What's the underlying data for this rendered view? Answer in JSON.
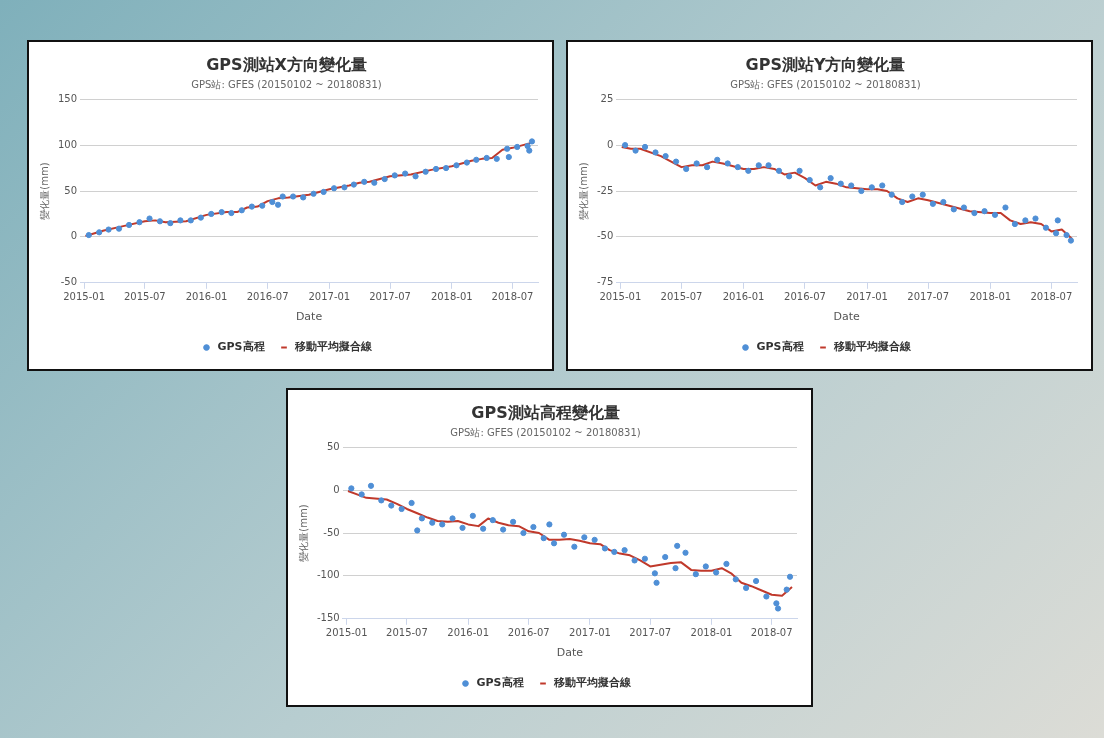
{
  "chart_data": [
    {
      "type": "scatter",
      "title": "GPS測站X方向變化量",
      "subtitle": "GPS站: GFES (20150102 ~ 20180831)",
      "xlabel": "Date",
      "ylabel": "變化量(mm)",
      "xlim": [
        "2014-12-20",
        "2018-09-15"
      ],
      "xticks": [
        "2015-01",
        "2015-07",
        "2016-01",
        "2016-07",
        "2017-01",
        "2017-07",
        "2018-01",
        "2018-07"
      ],
      "ylim": [
        -50,
        150
      ],
      "yticks": [
        -50,
        0,
        50,
        100,
        150
      ],
      "grid": "y",
      "legend": "bottom",
      "series": [
        {
          "name": "GPS高程",
          "type": "scatter",
          "marker": "circle",
          "color": "#4f8fd6",
          "x": [
            "2015-01-15",
            "2015-02-15",
            "2015-03-15",
            "2015-04-15",
            "2015-05-15",
            "2015-06-15",
            "2015-07-15",
            "2015-08-15",
            "2015-09-15",
            "2015-10-15",
            "2015-11-15",
            "2015-12-15",
            "2016-01-15",
            "2016-02-15",
            "2016-03-15",
            "2016-04-15",
            "2016-05-15",
            "2016-06-15",
            "2016-07-15",
            "2016-08-15",
            "2016-09-15",
            "2016-10-15",
            "2016-11-15",
            "2016-12-15",
            "2017-01-15",
            "2017-02-15",
            "2017-03-15",
            "2017-04-15",
            "2017-05-15",
            "2017-06-15",
            "2017-07-15",
            "2017-08-15",
            "2017-09-15",
            "2017-10-15",
            "2017-11-15",
            "2017-12-15",
            "2018-01-15",
            "2018-02-15",
            "2018-03-15",
            "2018-04-15",
            "2018-05-15",
            "2018-06-15",
            "2018-07-15",
            "2018-08-15",
            "2016-08-01",
            "2018-06-20",
            "2018-08-20",
            "2018-08-28"
          ],
          "values": [
            2,
            5,
            8,
            9,
            13,
            16,
            20,
            17,
            15,
            18,
            18,
            21,
            25,
            27,
            26,
            29,
            33,
            34,
            38,
            44,
            44,
            43,
            47,
            49,
            53,
            54,
            57,
            60,
            59,
            63,
            67,
            69,
            66,
            71,
            74,
            75,
            78,
            81,
            84,
            86,
            85,
            96,
            98,
            99,
            35,
            87,
            94,
            104
          ]
        },
        {
          "name": "移動平均擬合線",
          "type": "line",
          "marker": "none",
          "color": "#c0392b",
          "x": [
            "2015-01-05",
            "2015-03-01",
            "2015-05-01",
            "2015-07-01",
            "2015-08-01",
            "2015-09-01",
            "2015-11-01",
            "2016-01-01",
            "2016-03-01",
            "2016-04-01",
            "2016-05-01",
            "2016-06-01",
            "2016-07-01",
            "2016-08-01",
            "2016-09-01",
            "2016-11-01",
            "2017-01-01",
            "2017-03-01",
            "2017-04-01",
            "2017-05-01",
            "2017-07-01",
            "2017-09-01",
            "2017-11-01",
            "2018-01-01",
            "2018-03-01",
            "2018-04-01",
            "2018-05-01",
            "2018-06-01",
            "2018-07-01",
            "2018-08-01",
            "2018-08-31"
          ],
          "values": [
            1,
            7,
            12,
            17,
            18,
            16,
            17,
            24,
            27,
            27,
            32,
            33,
            39,
            42,
            43,
            46,
            52,
            56,
            59,
            60,
            66,
            68,
            73,
            77,
            83,
            85,
            86,
            95,
            97,
            100,
            103
          ]
        }
      ]
    },
    {
      "type": "scatter",
      "title": "GPS測站Y方向變化量",
      "subtitle": "GPS站: GFES (20150102 ~ 20180831)",
      "xlabel": "Date",
      "ylabel": "變化量(mm)",
      "xlim": [
        "2014-12-20",
        "2018-09-15"
      ],
      "xticks": [
        "2015-01",
        "2015-07",
        "2016-01",
        "2016-07",
        "2017-01",
        "2017-07",
        "2018-01",
        "2018-07"
      ],
      "ylim": [
        -75,
        25
      ],
      "yticks": [
        -75,
        -50,
        -25,
        0,
        25
      ],
      "grid": "y",
      "legend": "bottom",
      "series": [
        {
          "name": "GPS高程",
          "type": "scatter",
          "marker": "circle",
          "color": "#4f8fd6",
          "x": [
            "2015-01-15",
            "2015-02-15",
            "2015-03-15",
            "2015-04-15",
            "2015-05-15",
            "2015-06-15",
            "2015-07-15",
            "2015-08-15",
            "2015-09-15",
            "2015-10-15",
            "2015-11-15",
            "2015-12-15",
            "2016-01-15",
            "2016-02-15",
            "2016-03-15",
            "2016-04-15",
            "2016-05-15",
            "2016-06-15",
            "2016-07-15",
            "2016-08-15",
            "2016-09-15",
            "2016-10-15",
            "2016-11-15",
            "2016-12-15",
            "2017-01-15",
            "2017-02-15",
            "2017-03-15",
            "2017-04-15",
            "2017-05-15",
            "2017-06-15",
            "2017-07-15",
            "2017-08-15",
            "2017-09-15",
            "2017-10-15",
            "2017-11-15",
            "2017-12-15",
            "2018-01-15",
            "2018-02-15",
            "2018-03-15",
            "2018-04-15",
            "2018-05-15",
            "2018-06-15",
            "2018-07-15",
            "2018-08-15",
            "2018-08-28",
            "2018-07-20"
          ],
          "values": [
            0,
            -3,
            -1,
            -4,
            -6,
            -9,
            -13,
            -10,
            -12,
            -8,
            -10,
            -12,
            -14,
            -11,
            -11,
            -14,
            -17,
            -14,
            -19,
            -23,
            -18,
            -21,
            -22,
            -25,
            -23,
            -22,
            -27,
            -31,
            -28,
            -27,
            -32,
            -31,
            -35,
            -34,
            -37,
            -36,
            -38,
            -34,
            -43,
            -41,
            -40,
            -45,
            -48,
            -49,
            -52,
            -41
          ]
        },
        {
          "name": "移動平均擬合線",
          "type": "line",
          "marker": "none",
          "color": "#c0392b",
          "x": [
            "2015-01-05",
            "2015-02-01",
            "2015-03-01",
            "2015-05-01",
            "2015-07-01",
            "2015-08-01",
            "2015-09-01",
            "2015-10-01",
            "2015-11-01",
            "2016-01-01",
            "2016-02-01",
            "2016-03-01",
            "2016-04-01",
            "2016-05-01",
            "2016-06-01",
            "2016-07-01",
            "2016-08-01",
            "2016-09-01",
            "2016-10-01",
            "2016-11-01",
            "2017-01-01",
            "2017-02-01",
            "2017-03-01",
            "2017-04-01",
            "2017-05-01",
            "2017-06-01",
            "2017-07-01",
            "2017-09-01",
            "2017-11-01",
            "2018-01-01",
            "2018-02-01",
            "2018-03-01",
            "2018-04-01",
            "2018-05-01",
            "2018-06-01",
            "2018-07-01",
            "2018-08-01",
            "2018-08-31"
          ],
          "values": [
            -1,
            -2,
            -2,
            -6,
            -12,
            -11,
            -11,
            -9,
            -10,
            -13,
            -13,
            -12,
            -13,
            -16,
            -15,
            -18,
            -22,
            -20,
            -21,
            -23,
            -24,
            -24,
            -25,
            -29,
            -31,
            -29,
            -30,
            -33,
            -36,
            -37,
            -37,
            -41,
            -43,
            -42,
            -43,
            -47,
            -46,
            -51
          ]
        }
      ]
    },
    {
      "type": "scatter",
      "title": "GPS測站高程變化量",
      "subtitle": "GPS站: GFES (20150102 ~ 20180831)",
      "xlabel": "Date",
      "ylabel": "變化量(mm)",
      "xlim": [
        "2014-12-20",
        "2018-09-15"
      ],
      "xticks": [
        "2015-01",
        "2015-07",
        "2016-01",
        "2016-07",
        "2017-01",
        "2017-07",
        "2018-01",
        "2018-07"
      ],
      "ylim": [
        -150,
        50
      ],
      "yticks": [
        -150,
        -100,
        -50,
        0,
        50
      ],
      "grid": "y",
      "legend": "bottom",
      "series": [
        {
          "name": "GPS高程",
          "type": "scatter",
          "marker": "circle",
          "color": "#4f8fd6",
          "x": [
            "2015-01-15",
            "2015-02-15",
            "2015-03-15",
            "2015-04-15",
            "2015-05-15",
            "2015-06-15",
            "2015-07-15",
            "2015-08-15",
            "2015-09-15",
            "2015-10-15",
            "2015-11-15",
            "2015-12-15",
            "2016-01-15",
            "2016-02-15",
            "2016-03-15",
            "2016-04-15",
            "2016-05-15",
            "2016-06-15",
            "2016-07-15",
            "2016-08-15",
            "2016-09-15",
            "2016-10-15",
            "2016-11-15",
            "2016-12-15",
            "2017-01-15",
            "2017-02-15",
            "2017-03-15",
            "2017-04-15",
            "2017-05-15",
            "2017-06-15",
            "2017-07-15",
            "2017-08-15",
            "2017-09-15",
            "2017-10-15",
            "2017-11-15",
            "2017-12-15",
            "2018-01-15",
            "2018-02-15",
            "2018-03-15",
            "2018-04-15",
            "2018-05-15",
            "2018-06-15",
            "2018-07-15",
            "2018-08-15",
            "2015-08-01",
            "2017-07-20",
            "2018-07-20",
            "2018-08-25",
            "2017-09-20",
            "2016-09-01"
          ],
          "values": [
            2,
            -5,
            5,
            -12,
            -18,
            -22,
            -15,
            -33,
            -38,
            -40,
            -33,
            -44,
            -30,
            -45,
            -35,
            -46,
            -37,
            -50,
            -43,
            -56,
            -62,
            -52,
            -66,
            -55,
            -58,
            -68,
            -72,
            -70,
            -82,
            -80,
            -97,
            -78,
            -91,
            -73,
            -98,
            -89,
            -96,
            -86,
            -104,
            -114,
            -106,
            -124,
            -132,
            -116,
            -47,
            -108,
            -138,
            -101,
            -65,
            -40
          ]
        },
        {
          "name": "移動平均擬合線",
          "type": "line",
          "marker": "none",
          "color": "#c0392b",
          "x": [
            "2015-01-05",
            "2015-02-01",
            "2015-03-01",
            "2015-05-01",
            "2015-06-01",
            "2015-07-01",
            "2015-08-01",
            "2015-09-01",
            "2015-10-01",
            "2015-11-01",
            "2015-12-01",
            "2016-01-01",
            "2016-02-01",
            "2016-03-01",
            "2016-04-01",
            "2016-05-01",
            "2016-06-01",
            "2016-07-01",
            "2016-08-01",
            "2016-09-01",
            "2016-10-01",
            "2016-11-01",
            "2016-12-01",
            "2017-01-01",
            "2017-02-01",
            "2017-03-01",
            "2017-04-01",
            "2017-05-01",
            "2017-06-01",
            "2017-07-01",
            "2017-08-01",
            "2017-09-01",
            "2017-10-01",
            "2017-11-01",
            "2017-12-01",
            "2018-01-01",
            "2018-02-01",
            "2018-03-01",
            "2018-04-01",
            "2018-05-01",
            "2018-06-01",
            "2018-07-01",
            "2018-08-01",
            "2018-08-31"
          ],
          "values": [
            -1,
            -5,
            -9,
            -11,
            -16,
            -22,
            -27,
            -32,
            -36,
            -37,
            -36,
            -40,
            -42,
            -33,
            -38,
            -41,
            -42,
            -48,
            -50,
            -58,
            -58,
            -57,
            -59,
            -62,
            -63,
            -70,
            -74,
            -76,
            -82,
            -89,
            -87,
            -85,
            -84,
            -93,
            -94,
            -94,
            -91,
            -97,
            -108,
            -112,
            -117,
            -122,
            -123,
            -113
          ]
        }
      ]
    }
  ]
}
